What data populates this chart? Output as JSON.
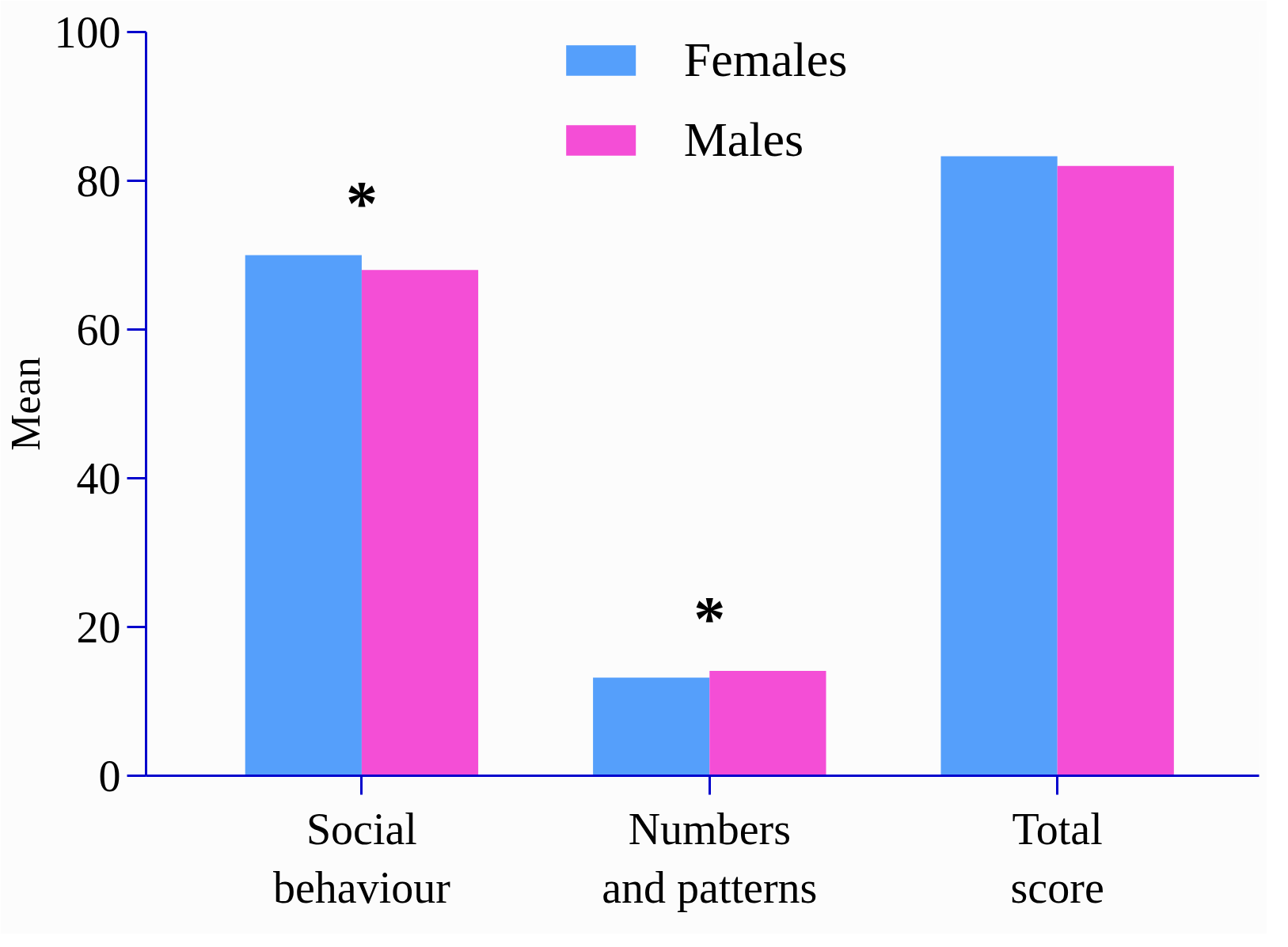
{
  "chart_data": {
    "type": "bar",
    "ylabel": "Mean",
    "categories": [
      "Social\nbehaviour",
      "Numbers\nand patterns",
      "Total\nscore"
    ],
    "series": [
      {
        "name": "Females",
        "color": "#559ffb",
        "values": [
          70,
          13.2,
          83.3
        ]
      },
      {
        "name": "Males",
        "color": "#f44ed6",
        "values": [
          68,
          14.1,
          82
        ]
      }
    ],
    "ylim": [
      0,
      100
    ],
    "yticks": [
      0,
      20,
      40,
      60,
      80,
      100
    ],
    "annotations": [
      "*",
      "*"
    ],
    "legend": "top",
    "grid": false
  }
}
